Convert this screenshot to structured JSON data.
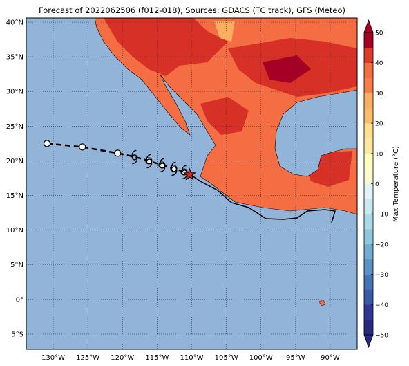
{
  "title": "Forecast of 2022062506 (f012-018), Sources: GDACS (TC track), GFS (Meteo)",
  "map": {
    "xlim": [
      -133.9,
      -86.1
    ],
    "ylim": [
      -7.2,
      40.6
    ],
    "grid": true,
    "xticks": [
      {
        "value": -130,
        "label": "130°W"
      },
      {
        "value": -125,
        "label": "125°W"
      },
      {
        "value": -120,
        "label": "120°W"
      },
      {
        "value": -115,
        "label": "115°W"
      },
      {
        "value": -110,
        "label": "110°W"
      },
      {
        "value": -105,
        "label": "105°W"
      },
      {
        "value": -100,
        "label": "100°W"
      },
      {
        "value": -95,
        "label": "95°W"
      },
      {
        "value": -90,
        "label": "90°W"
      }
    ],
    "yticks": [
      {
        "value": -5,
        "label": "5°S"
      },
      {
        "value": 0,
        "label": "0°"
      },
      {
        "value": 5,
        "label": "5°N"
      },
      {
        "value": 10,
        "label": "10°N"
      },
      {
        "value": 15,
        "label": "15°N"
      },
      {
        "value": 20,
        "label": "20°N"
      },
      {
        "value": 25,
        "label": "25°N"
      },
      {
        "value": 30,
        "label": "30°N"
      },
      {
        "value": 35,
        "label": "35°N"
      },
      {
        "value": 40,
        "label": "40°N"
      }
    ],
    "track": [
      {
        "lon": -130.9,
        "lat": 22.5,
        "marker": "circle"
      },
      {
        "lon": -125.8,
        "lat": 22.0,
        "marker": "circle"
      },
      {
        "lon": -120.7,
        "lat": 21.1,
        "marker": "circle"
      },
      {
        "lon": -118.3,
        "lat": 20.6,
        "marker": "hurricane"
      },
      {
        "lon": -116.2,
        "lat": 20.0,
        "marker": "both"
      },
      {
        "lon": -114.3,
        "lat": 19.4,
        "marker": "both"
      },
      {
        "lon": -112.6,
        "lat": 18.9,
        "marker": "both"
      },
      {
        "lon": -111.1,
        "lat": 18.4,
        "marker": "both"
      },
      {
        "lon": -110.3,
        "lat": 18.0,
        "marker": "star"
      }
    ]
  },
  "colorbar": {
    "label": "Max Temperature (°C)",
    "lim": [
      -50,
      50
    ],
    "ticks": [
      {
        "value": -50,
        "label": "−50"
      },
      {
        "value": -40,
        "label": "−40"
      },
      {
        "value": -30,
        "label": "−30"
      },
      {
        "value": -20,
        "label": "−20"
      },
      {
        "value": -10,
        "label": "−10"
      },
      0,
      10,
      20,
      30,
      40,
      50
    ],
    "colors": [
      "#262a7c",
      "#313695",
      "#3a5aa6",
      "#4575b4",
      "#5b92c3",
      "#74add1",
      "#91c6df",
      "#abd9e9",
      "#c9e8f2",
      "#e0f3f8",
      "#fdf9d0",
      "#ffffbf",
      "#fee8a0",
      "#fee090",
      "#fdbb6c",
      "#fdae61",
      "#f67e4b",
      "#f46d43",
      "#dc3b2c",
      "#a50026"
    ]
  }
}
